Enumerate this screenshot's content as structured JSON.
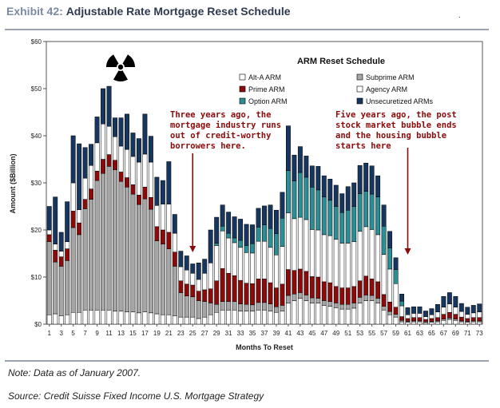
{
  "header": {
    "exhibit": "Exhibit 42:",
    "title": "Adjustable Rate Mortgage Reset Schedule",
    "corner_mark": "."
  },
  "footer": {
    "note": "Note: Data as of January 2007.",
    "source": "Source: Credit Suisse Fixed Income U.S. Mortgage Strategy"
  },
  "chart_data": {
    "type": "bar",
    "stacked": true,
    "title": "ARM Reset Schedule",
    "xlabel": "Months To Reset",
    "ylabel": "Amount ($Billion)",
    "ylim": [
      0,
      60
    ],
    "yticks": [
      "$0",
      "$10",
      "$20",
      "$30",
      "$40",
      "$50",
      "$60"
    ],
    "xtick_labels": [
      "1",
      "3",
      "5",
      "7",
      "9",
      "11",
      "13",
      "15",
      "17",
      "19",
      "21",
      "23",
      "25",
      "27",
      "29",
      "31",
      "33",
      "35",
      "37",
      "39",
      "41",
      "43",
      "45",
      "47",
      "49",
      "51",
      "53",
      "55",
      "57",
      "59",
      "61",
      "63",
      "65",
      "67",
      "69",
      "71",
      "73"
    ],
    "grid": false,
    "legend_position": "top-right",
    "colors": {
      "alt_a": "#ffffff",
      "subprime": "#a6a6a6",
      "prime": "#8b0a0a",
      "agency": "#ffffff",
      "option": "#2c8d95",
      "unsecuritized": "#16365f",
      "annotation": "#8b0a0a"
    },
    "legend": [
      {
        "key": "alt_a",
        "label": "Alt-A ARM"
      },
      {
        "key": "subprime",
        "label": "Subprime ARM"
      },
      {
        "key": "prime",
        "label": "Prime ARM"
      },
      {
        "key": "agency",
        "label": "Agency ARM"
      },
      {
        "key": "option",
        "label": "Option ARM"
      },
      {
        "key": "unsecuritized",
        "label": "Unsecuretized ARMs"
      }
    ],
    "annotations": [
      {
        "text": [
          "Three years ago, the",
          "mortgage industry runs",
          "out of credit-worthy",
          "borrowers here."
        ],
        "arrow_at_month": 25
      },
      {
        "text": [
          "Five years ago, the post",
          "stock market bubble ends",
          "and the housing bubble",
          "starts here"
        ],
        "arrow_at_month": 61
      }
    ],
    "months": [
      1,
      2,
      3,
      4,
      5,
      6,
      7,
      8,
      9,
      10,
      11,
      12,
      13,
      14,
      15,
      16,
      17,
      18,
      19,
      20,
      21,
      22,
      23,
      24,
      25,
      26,
      27,
      28,
      29,
      30,
      31,
      32,
      33,
      34,
      35,
      36,
      37,
      38,
      39,
      40,
      41,
      42,
      43,
      44,
      45,
      46,
      47,
      48,
      49,
      50,
      51,
      52,
      53,
      54,
      55,
      56,
      57,
      58,
      59,
      60,
      61,
      62,
      63,
      64,
      65,
      66,
      67,
      68,
      69,
      70,
      71,
      72,
      73
    ],
    "series": [
      {
        "name": "Alt-A ARM",
        "key": "alt_a",
        "values": [
          2,
          2.2,
          1.8,
          2,
          2.5,
          2.5,
          3,
          3,
          3,
          3,
          3,
          2.8,
          2.8,
          2.6,
          2.6,
          2.4,
          2.6,
          2.4,
          2.2,
          2,
          2,
          1.8,
          1.5,
          1.5,
          1.5,
          1.2,
          1.5,
          2,
          2.5,
          3,
          3,
          3,
          2.8,
          2.8,
          2.8,
          3,
          3,
          2.8,
          2.5,
          2.8,
          4.5,
          5,
          5.5,
          5,
          4.5,
          4.5,
          4,
          3.8,
          3.5,
          3.2,
          3.2,
          3.4,
          4.5,
          5,
          5,
          4.5,
          3,
          2,
          1.5,
          0.5,
          0.4,
          0.5,
          0.5,
          0.3,
          0.4,
          0.5,
          0.8,
          1,
          0.8,
          0.5,
          0.4,
          0.5,
          0.5
        ]
      },
      {
        "name": "Subprime ARM",
        "key": "subprime",
        "values": [
          15.5,
          11,
          10.5,
          11.5,
          18,
          16.5,
          21.5,
          23.5,
          27.5,
          29,
          30.5,
          30,
          27.5,
          26.5,
          25,
          23,
          24,
          22,
          15.5,
          15,
          14,
          10.5,
          5.2,
          4.5,
          4.3,
          3.8,
          3.3,
          2.5,
          1.7,
          1.8,
          1.8,
          1.8,
          1.5,
          1.4,
          1.3,
          1.6,
          1.6,
          1.5,
          1.2,
          1.2,
          1.6,
          1.4,
          1.2,
          1.2,
          1.1,
          1,
          1,
          1,
          1,
          1,
          1,
          1.1,
          1.2,
          1.2,
          1.1,
          1,
          0.8,
          0.7,
          0.6,
          0.3,
          0.2,
          0.2,
          0.2,
          0.2,
          0.2,
          0.2,
          0.3,
          0.3,
          0.3,
          0.2,
          0.2,
          0.2,
          0.2
        ]
      },
      {
        "name": "Prime ARM",
        "key": "prime",
        "values": [
          1.5,
          2.5,
          2,
          2.5,
          3.5,
          2.5,
          2,
          2.2,
          2,
          3,
          2.5,
          2,
          2,
          2,
          2,
          2,
          2.5,
          2.5,
          3,
          3,
          3.5,
          3,
          2.5,
          2.5,
          2.5,
          2,
          2.5,
          3,
          5,
          7,
          6,
          5.5,
          5,
          4.5,
          4.5,
          5,
          5,
          4.5,
          4,
          4.5,
          5.5,
          5,
          5,
          5,
          4.5,
          4.5,
          4,
          4,
          3.5,
          3.5,
          3.5,
          3.5,
          3.5,
          4,
          3.5,
          3.5,
          2.5,
          2,
          1.5,
          0.8,
          0.6,
          0.7,
          0.7,
          0.5,
          0.6,
          0.7,
          1,
          1.2,
          1,
          0.8,
          0.6,
          0.7,
          0.7
        ]
      },
      {
        "name": "Agency ARM",
        "key": "agency",
        "values": [
          1,
          1.3,
          1.2,
          1.5,
          6,
          2.8,
          4.5,
          5,
          6,
          7.5,
          6,
          5,
          5.5,
          6,
          6,
          7,
          7,
          7.5,
          4.5,
          5.5,
          6,
          4,
          3,
          3,
          2.5,
          2.5,
          3.5,
          5.5,
          7.5,
          8,
          7.5,
          7,
          7,
          6.5,
          6.5,
          8,
          8,
          7.5,
          7,
          8,
          12,
          11,
          11,
          11,
          10,
          10,
          10,
          10,
          10,
          9.5,
          9.5,
          9.5,
          10.5,
          10.5,
          10.5,
          10,
          8.5,
          7,
          5,
          2.3,
          0.8,
          0.9,
          0.9,
          0.6,
          0.8,
          1.2,
          1.5,
          1.8,
          1.5,
          1.2,
          0.9,
          1,
          1.2
        ]
      },
      {
        "name": "Option ARM",
        "key": "option",
        "values": [
          0,
          0,
          0,
          0,
          0,
          0,
          0,
          0,
          0,
          0,
          0,
          0,
          0,
          0,
          0,
          0,
          0,
          0,
          0,
          0,
          0,
          0,
          0,
          0,
          0,
          0,
          0,
          0,
          0.5,
          1,
          1,
          1,
          1.5,
          1.5,
          2,
          3,
          3.5,
          4,
          4.5,
          6,
          9,
          8,
          9.5,
          9,
          9,
          8.5,
          8,
          7.5,
          7,
          6.5,
          7,
          7.5,
          8,
          7.5,
          7.5,
          8,
          6,
          4.5,
          3,
          1,
          0,
          0,
          0,
          0,
          0,
          0,
          0,
          0,
          0,
          0,
          0,
          0,
          0
        ]
      },
      {
        "name": "Unsecuretized ARMs",
        "key": "unsecuritized",
        "values": [
          5,
          10,
          4,
          8.5,
          10,
          14,
          6.5,
          4.5,
          5.5,
          7.5,
          8.5,
          4,
          6,
          7.5,
          5,
          5,
          8.5,
          5.5,
          6,
          5,
          9,
          4,
          3.3,
          3,
          2,
          3.5,
          3,
          7,
          5.5,
          4.5,
          4.5,
          4.5,
          4.5,
          4.5,
          4,
          4,
          4,
          5,
          5,
          5.5,
          9.5,
          5.5,
          5.5,
          4.5,
          4.5,
          5,
          4.5,
          4.5,
          4.5,
          4,
          5,
          5,
          6,
          6,
          6,
          4.5,
          4.5,
          3.5,
          2.5,
          1.5,
          1.5,
          1.4,
          1.4,
          1.2,
          1.3,
          1.6,
          2.3,
          2.4,
          2.3,
          1.7,
          1.5,
          1.6,
          1.7
        ]
      }
    ]
  }
}
